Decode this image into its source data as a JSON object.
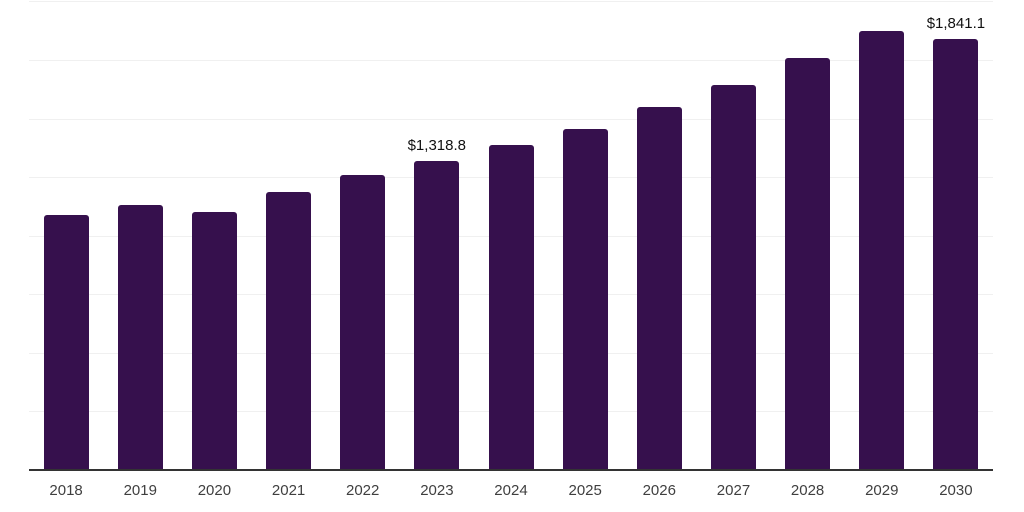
{
  "chart_data": {
    "type": "bar",
    "categories": [
      "2018",
      "2019",
      "2020",
      "2021",
      "2022",
      "2023",
      "2024",
      "2025",
      "2026",
      "2027",
      "2028",
      "2029",
      "2030"
    ],
    "values": [
      1090,
      1130,
      1102,
      1187,
      1258,
      1318.8,
      1386,
      1457,
      1549,
      1645,
      1758,
      1876,
      1841.1
    ],
    "annotations": [
      {
        "category": "2023",
        "text": "$1,318.8"
      },
      {
        "category": "2030",
        "text": "$1,841.1"
      }
    ],
    "ylim": [
      0,
      2000
    ],
    "grid_step": 250,
    "grid": true,
    "legend": false,
    "y_axis_labels_visible": false,
    "bar_color": "#36104d",
    "gridline_color": "#f0f0f0",
    "axis_line_color": "#333333",
    "tick_label_color": "#3f3f3f",
    "annotation_color": "#111111"
  }
}
